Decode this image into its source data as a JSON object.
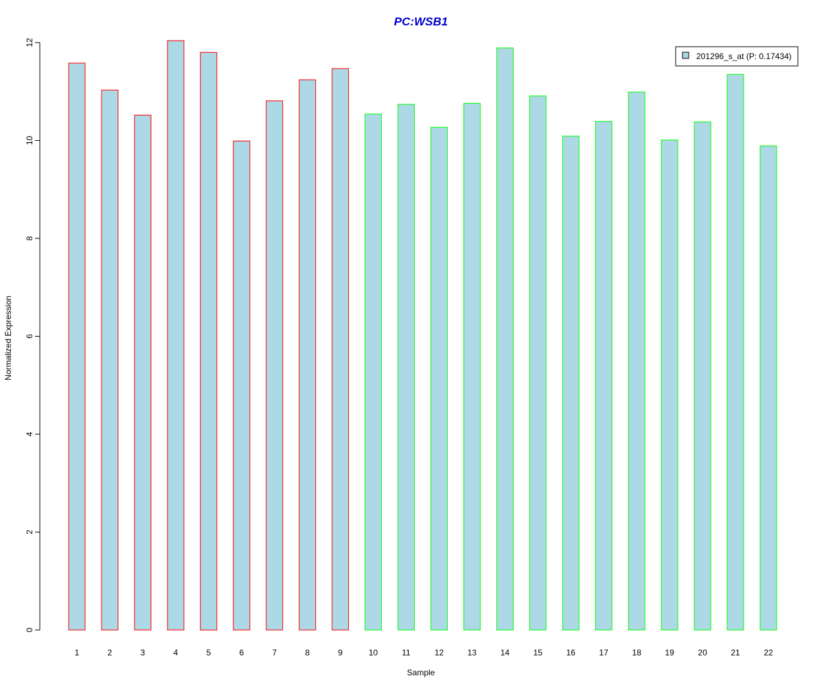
{
  "chart_data": {
    "type": "bar",
    "title": "PC:WSB1",
    "title_color": "#0000CD",
    "xlabel": "Sample",
    "ylabel": "Normalized Expression",
    "ylim": [
      0,
      12
    ],
    "yticks": [
      "0",
      "2",
      "4",
      "6",
      "8",
      "10",
      "12"
    ],
    "categories": [
      "1",
      "2",
      "3",
      "4",
      "5",
      "6",
      "7",
      "8",
      "9",
      "10",
      "11",
      "12",
      "13",
      "14",
      "15",
      "16",
      "17",
      "18",
      "19",
      "20",
      "21",
      "22"
    ],
    "series": [
      {
        "name": "201296_s_at (P: 0.17434)",
        "values": [
          11.58,
          11.03,
          10.52,
          12.04,
          11.8,
          9.99,
          10.81,
          11.24,
          11.47,
          10.54,
          10.74,
          10.27,
          10.76,
          11.89,
          10.91,
          10.09,
          10.39,
          10.99,
          10.01,
          10.38,
          11.35,
          9.89
        ]
      }
    ],
    "bar_fill": "#ADD8E6",
    "group_border_colors": [
      "#FF0000",
      "#FF0000",
      "#FF0000",
      "#FF0000",
      "#FF0000",
      "#FF0000",
      "#FF0000",
      "#FF0000",
      "#FF0000",
      "#00FF00",
      "#00FF00",
      "#00FF00",
      "#00FF00",
      "#00FF00",
      "#00FF00",
      "#00FF00",
      "#00FF00",
      "#00FF00",
      "#00FF00",
      "#00FF00",
      "#00FF00",
      "#00FF00"
    ],
    "legend": {
      "position": "top-right",
      "label": "201296_s_at (P: 0.17434)"
    },
    "grid": false
  }
}
